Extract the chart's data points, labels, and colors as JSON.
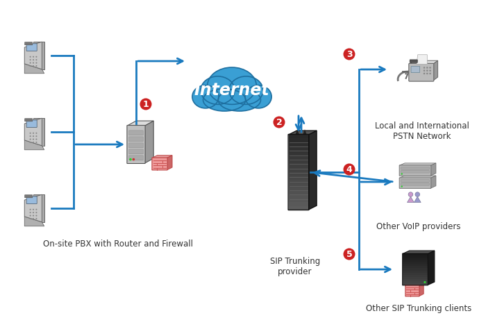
{
  "bg_color": "#ffffff",
  "arrow_color": "#1a7abf",
  "arrow_lw": 2.0,
  "circle_color": "#cc2222",
  "circle_text_color": "#ffffff",
  "label_color": "#333333",
  "cloud_color": "#3a9fd4",
  "cloud_edge": "#1e6fa0",
  "internet_text": "Internet",
  "internet_text_color": "#ffffff",
  "internet_fontsize": 17,
  "label_fontsize": 8.5,
  "num_fontsize": 9,
  "labels": {
    "pbx": "On-site PBX with Router and Firewall",
    "sip": "SIP Trunking\nprovider",
    "pstn": "Local and International\nPSTN Network",
    "voip": "Other VoIP providers",
    "sip_clients": "Other SIP Trunking clients"
  }
}
